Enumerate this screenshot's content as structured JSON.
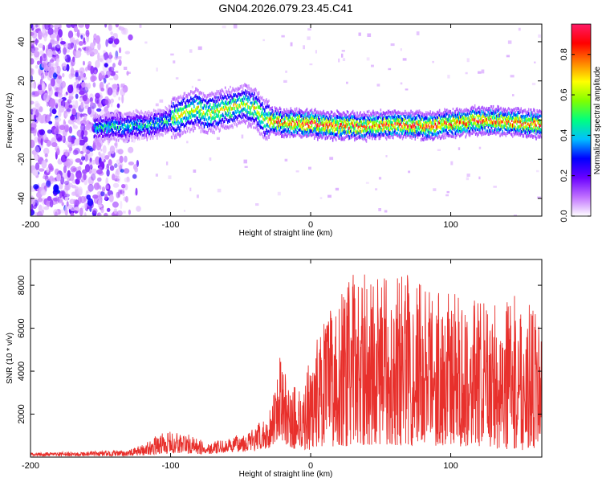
{
  "title": "GN04.2026.079.23.45.C41",
  "chart_data": [
    {
      "type": "heatmap",
      "name": "spectrogram",
      "xlabel": "Height of straight line (km)",
      "ylabel": "Frequency (Hz)",
      "xlim": [
        -200,
        165
      ],
      "ylim": [
        -49,
        49
      ],
      "xticks": [
        -200,
        -100,
        0,
        100
      ],
      "yticks": [
        -40,
        -20,
        0,
        20,
        40
      ],
      "xtick_labels": [
        "-200",
        "-100",
        "0",
        "100"
      ],
      "ytick_labels": [
        "-40",
        "-20",
        "0",
        "20",
        "40"
      ],
      "colorbar": {
        "label": "Normalized spectral amplitude",
        "range": [
          0,
          0.95
        ],
        "ticks": [
          0,
          0.2,
          0.4,
          0.6,
          0.8
        ],
        "tick_labels": [
          "0.0",
          "0.2",
          "0.4",
          "0.6",
          "0.8"
        ],
        "colors": [
          "#ffffff",
          "#c070ff",
          "#6a00ff",
          "#0000ff",
          "#00bfff",
          "#00ff80",
          "#80ff00",
          "#ffff00",
          "#ff8000",
          "#ff0000",
          "#ff1a66"
        ]
      },
      "ridge_points": [
        {
          "x": -155,
          "y": -4
        },
        {
          "x": -130,
          "y": -3
        },
        {
          "x": -110,
          "y": -2
        },
        {
          "x": -95,
          "y": 2
        },
        {
          "x": -82,
          "y": 6
        },
        {
          "x": -75,
          "y": 3
        },
        {
          "x": -60,
          "y": 6
        },
        {
          "x": -48,
          "y": 8
        },
        {
          "x": -40,
          "y": 6
        },
        {
          "x": -33,
          "y": 0
        },
        {
          "x": -20,
          "y": -1
        },
        {
          "x": 0,
          "y": -2
        },
        {
          "x": 20,
          "y": -3
        },
        {
          "x": 40,
          "y": -3
        },
        {
          "x": 60,
          "y": -2
        },
        {
          "x": 80,
          "y": -3
        },
        {
          "x": 100,
          "y": -2
        },
        {
          "x": 120,
          "y": 0
        },
        {
          "x": 140,
          "y": -1
        },
        {
          "x": 165,
          "y": -2
        }
      ],
      "noise_region": {
        "x_from": -200,
        "x_to": -150
      }
    },
    {
      "type": "line",
      "name": "snr",
      "xlabel": "Height of straight line (km)",
      "ylabel": "SNR (10 * v/v)",
      "xlim": [
        -200,
        165
      ],
      "ylim": [
        0,
        9200
      ],
      "xticks": [
        -200,
        -100,
        0,
        100
      ],
      "yticks": [
        2000,
        4000,
        6000,
        8000
      ],
      "xtick_labels": [
        "-200",
        "-100",
        "0",
        "100"
      ],
      "ytick_labels": [
        "2000",
        "4000",
        "6000",
        "8000"
      ],
      "color": "#e8302c",
      "envelope": [
        {
          "x": -200,
          "lo": 40,
          "hi": 200
        },
        {
          "x": -130,
          "lo": 50,
          "hi": 320
        },
        {
          "x": -120,
          "lo": 80,
          "hi": 600
        },
        {
          "x": -105,
          "lo": 150,
          "hi": 1200
        },
        {
          "x": -90,
          "lo": 150,
          "hi": 1150
        },
        {
          "x": -75,
          "lo": 130,
          "hi": 700
        },
        {
          "x": -60,
          "lo": 200,
          "hi": 800
        },
        {
          "x": -50,
          "lo": 250,
          "hi": 1100
        },
        {
          "x": -40,
          "lo": 250,
          "hi": 1400
        },
        {
          "x": -30,
          "lo": 400,
          "hi": 2000
        },
        {
          "x": -22,
          "lo": 900,
          "hi": 4700
        },
        {
          "x": -15,
          "lo": 400,
          "hi": 3200
        },
        {
          "x": -5,
          "lo": 300,
          "hi": 3600
        },
        {
          "x": 5,
          "lo": 400,
          "hi": 5800
        },
        {
          "x": 15,
          "lo": 500,
          "hi": 7000
        },
        {
          "x": 30,
          "lo": 500,
          "hi": 8600
        },
        {
          "x": 50,
          "lo": 600,
          "hi": 8400
        },
        {
          "x": 70,
          "lo": 500,
          "hi": 8800
        },
        {
          "x": 90,
          "lo": 500,
          "hi": 8000
        },
        {
          "x": 110,
          "lo": 500,
          "hi": 7500
        },
        {
          "x": 130,
          "lo": 400,
          "hi": 7200
        },
        {
          "x": 150,
          "lo": 300,
          "hi": 7600
        },
        {
          "x": 165,
          "lo": 500,
          "hi": 6500
        }
      ]
    }
  ]
}
